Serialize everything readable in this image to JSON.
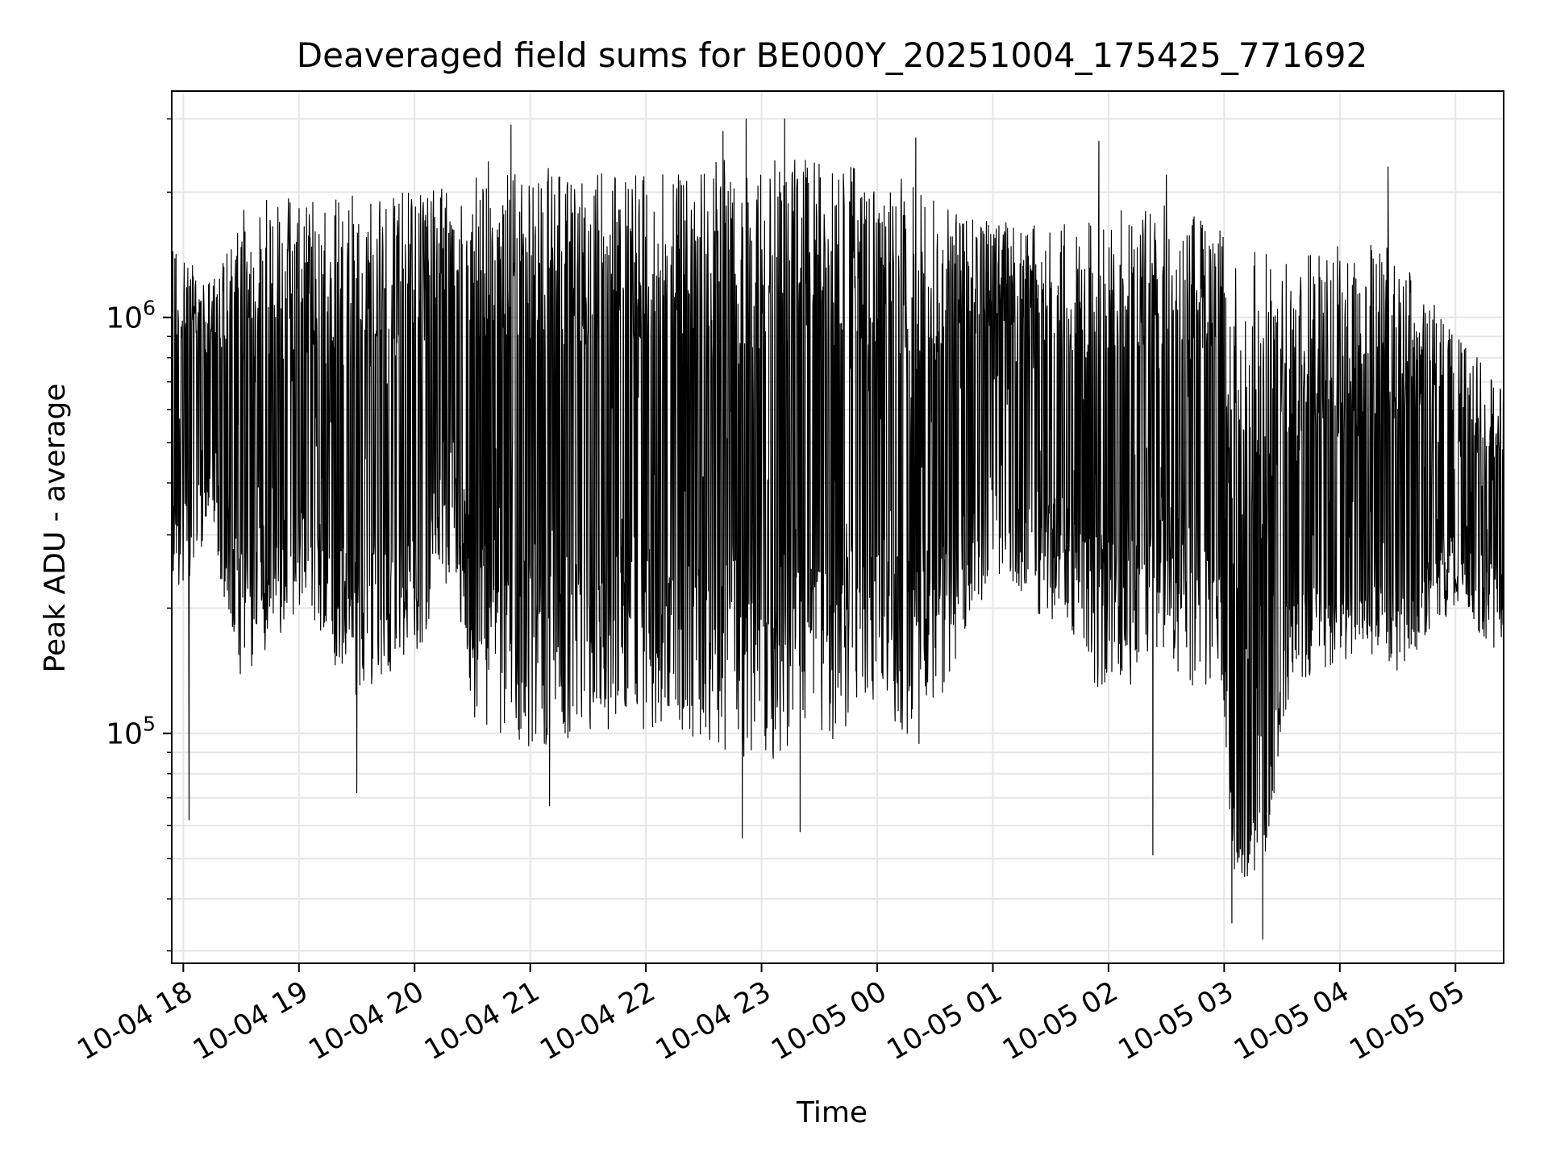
{
  "chart_data": {
    "type": "line",
    "title": "Deaveraged field sums for BE000Y_20251004_175425_771692",
    "xlabel": "Time",
    "ylabel": "Peak ADU - average",
    "y_scale": "log",
    "ylim": [
      28000,
      3500000
    ],
    "xlim": [
      "2025-10-04 17:54",
      "2025-10-05 05:25"
    ],
    "grid": true,
    "line_color": "#000000",
    "x_ticks": [
      {
        "value": "2025-10-04 18:00",
        "label": "10-04 18"
      },
      {
        "value": "2025-10-04 19:00",
        "label": "10-04 19"
      },
      {
        "value": "2025-10-04 20:00",
        "label": "10-04 20"
      },
      {
        "value": "2025-10-04 21:00",
        "label": "10-04 21"
      },
      {
        "value": "2025-10-04 22:00",
        "label": "10-04 22"
      },
      {
        "value": "2025-10-04 23:00",
        "label": "10-04 23"
      },
      {
        "value": "2025-10-05 00:00",
        "label": "10-05 00"
      },
      {
        "value": "2025-10-05 01:00",
        "label": "10-05 01"
      },
      {
        "value": "2025-10-05 02:00",
        "label": "10-05 02"
      },
      {
        "value": "2025-10-05 03:00",
        "label": "10-05 03"
      },
      {
        "value": "2025-10-05 04:00",
        "label": "10-05 04"
      },
      {
        "value": "2025-10-05 05:00",
        "label": "10-05 05"
      }
    ],
    "y_ticks": [
      {
        "value": 100000,
        "base": "10",
        "exp": "5"
      },
      {
        "value": 1000000,
        "base": "10",
        "exp": "6"
      }
    ],
    "envelope": {
      "x": [
        "2025-10-04 17:54",
        "2025-10-04 18:15",
        "2025-10-04 18:30",
        "2025-10-04 19:00",
        "2025-10-04 19:30",
        "2025-10-04 20:00",
        "2025-10-04 20:20",
        "2025-10-04 20:30",
        "2025-10-04 21:00",
        "2025-10-04 21:30",
        "2025-10-04 22:00",
        "2025-10-04 22:30",
        "2025-10-04 23:00",
        "2025-10-04 23:30",
        "2025-10-05 00:00",
        "2025-10-05 00:20",
        "2025-10-05 00:45",
        "2025-10-05 01:00",
        "2025-10-05 01:30",
        "2025-10-05 02:00",
        "2025-10-05 02:30",
        "2025-10-05 02:59",
        "2025-10-05 03:05",
        "2025-10-05 03:20",
        "2025-10-05 03:35",
        "2025-10-05 04:00",
        "2025-10-05 04:30",
        "2025-10-05 05:00",
        "2025-10-05 05:25"
      ],
      "upper": [
        1500000,
        1200000,
        1900000,
        1950000,
        2000000,
        2000000,
        2100000,
        2400000,
        2300000,
        2250000,
        2300000,
        2400000,
        2500000,
        2350000,
        2300000,
        2100000,
        1750000,
        1700000,
        1650000,
        1800000,
        1900000,
        1750000,
        1500000,
        1500000,
        1400000,
        1550000,
        1450000,
        900000,
        700000
      ],
      "lower": [
        200000,
        300000,
        130000,
        200000,
        120000,
        150000,
        250000,
        110000,
        90000,
        100000,
        100000,
        95000,
        85000,
        90000,
        120000,
        90000,
        150000,
        250000,
        180000,
        120000,
        140000,
        120000,
        45000,
        45000,
        130000,
        150000,
        140000,
        200000,
        150000
      ],
      "mid": [
        650000,
        650000,
        450000,
        500000,
        400000,
        550000,
        900000,
        500000,
        450000,
        450000,
        500000,
        500000,
        450000,
        480000,
        500000,
        420000,
        550000,
        700000,
        550000,
        500000,
        520000,
        480000,
        80000,
        80000,
        300000,
        280000,
        300000,
        380000,
        320000
      ]
    },
    "spikes_high": [
      {
        "x": "2025-10-04 22:52",
        "y": 3000000
      },
      {
        "x": "2025-10-04 23:12",
        "y": 3000000
      },
      {
        "x": "2025-10-04 20:50",
        "y": 2900000
      },
      {
        "x": "2025-10-04 22:40",
        "y": 2800000
      },
      {
        "x": "2025-10-05 02:30",
        "y": 2200000
      },
      {
        "x": "2025-10-05 04:25",
        "y": 2300000
      },
      {
        "x": "2025-10-05 00:20",
        "y": 2700000
      },
      {
        "x": "2025-10-05 01:55",
        "y": 2650000
      }
    ],
    "spikes_low": [
      {
        "x": "2025-10-04 18:03",
        "y": 62000
      },
      {
        "x": "2025-10-04 22:50",
        "y": 56000
      },
      {
        "x": "2025-10-04 23:20",
        "y": 58000
      },
      {
        "x": "2025-10-05 02:23",
        "y": 51000
      },
      {
        "x": "2025-10-05 03:20",
        "y": 32000
      },
      {
        "x": "2025-10-05 03:04",
        "y": 35000
      },
      {
        "x": "2025-10-04 19:30",
        "y": 72000
      },
      {
        "x": "2025-10-04 21:10",
        "y": 67000
      }
    ]
  }
}
